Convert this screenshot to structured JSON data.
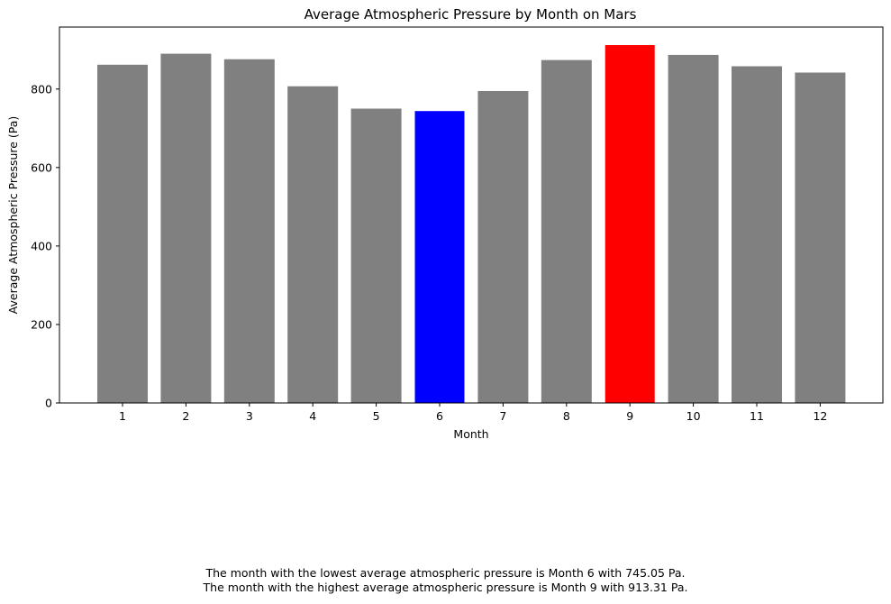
{
  "chart_data": {
    "type": "bar",
    "title": "Average Atmospheric Pressure by Month on Mars",
    "xlabel": "Month",
    "ylabel": "Average Atmospheric Pressure (Pa)",
    "categories": [
      "1",
      "2",
      "3",
      "4",
      "5",
      "6",
      "7",
      "8",
      "9",
      "10",
      "11",
      "12"
    ],
    "values": [
      862,
      890,
      876,
      807,
      750,
      745.05,
      795,
      874,
      913.31,
      887,
      858,
      842
    ],
    "ylim": [
      0,
      958
    ],
    "yticks": [
      0,
      200,
      400,
      600,
      800
    ],
    "grid": false,
    "colors": {
      "default": "#808080",
      "lowest": "#0000ff",
      "highest": "#ff0000"
    }
  },
  "notes": {
    "lowest": "The month with the lowest average atmospheric pressure is Month 6 with 745.05 Pa.",
    "highest": "The month with the highest average atmospheric pressure is Month 9 with 913.31 Pa."
  }
}
